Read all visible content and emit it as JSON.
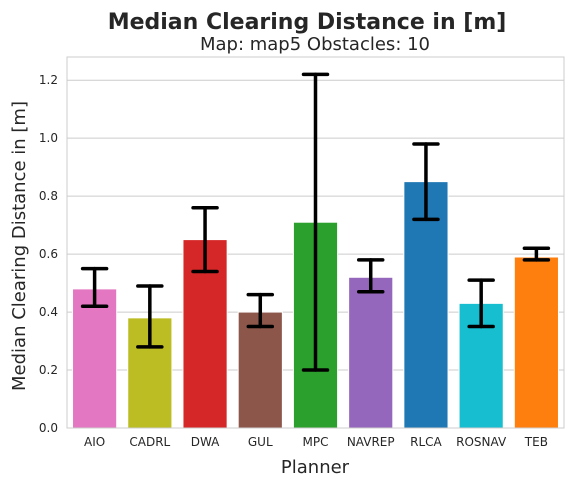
{
  "chart_data": {
    "type": "bar",
    "suptitle": "Median Clearing Distance in [m]",
    "title": "Map: map5 Obstacles: 10",
    "xlabel": "Planner",
    "ylabel": "Median Clearing Distance in [m]",
    "ylim": [
      0,
      1.28
    ],
    "yticks": [
      "0.0",
      "0.2",
      "0.4",
      "0.6",
      "0.8",
      "1.0",
      "1.2"
    ],
    "grid": true,
    "categories": [
      "AIO",
      "CADRL",
      "DWA",
      "GUL",
      "MPC",
      "NAVREP",
      "RLCA",
      "ROSNAV",
      "TEB"
    ],
    "values": [
      0.48,
      0.38,
      0.65,
      0.4,
      0.71,
      0.52,
      0.85,
      0.43,
      0.59
    ],
    "error_low": [
      0.42,
      0.28,
      0.54,
      0.35,
      0.2,
      0.47,
      0.72,
      0.35,
      0.58
    ],
    "error_high": [
      0.55,
      0.49,
      0.76,
      0.46,
      1.22,
      0.58,
      0.98,
      0.51,
      0.62
    ],
    "colors": [
      "#e377c2",
      "#bcbd22",
      "#d62728",
      "#8c564b",
      "#2ca02c",
      "#9467bd",
      "#1f77b4",
      "#17becf",
      "#ff7f0e"
    ]
  }
}
